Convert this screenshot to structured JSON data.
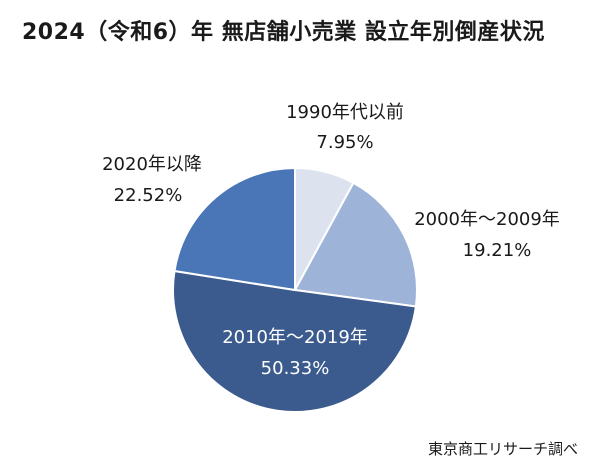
{
  "title": "2024（令和6）年 無店舗小売業 設立年別倒産状況",
  "source": "東京商工リサーチ調べ",
  "chart_data": {
    "type": "pie",
    "slices": [
      {
        "label": "1990年代以前",
        "value": 7.95,
        "value_text": "7.95%",
        "color": "#dce3ef"
      },
      {
        "label": "2000年～2009年",
        "value": 19.21,
        "value_text": "19.21%",
        "color": "#9db3d8"
      },
      {
        "label": "2010年～2019年",
        "value": 50.33,
        "value_text": "50.33%",
        "color": "#3b5a8e"
      },
      {
        "label": "2020年以降",
        "value": 22.52,
        "value_text": "22.52%",
        "color": "#4a76b8"
      }
    ]
  }
}
